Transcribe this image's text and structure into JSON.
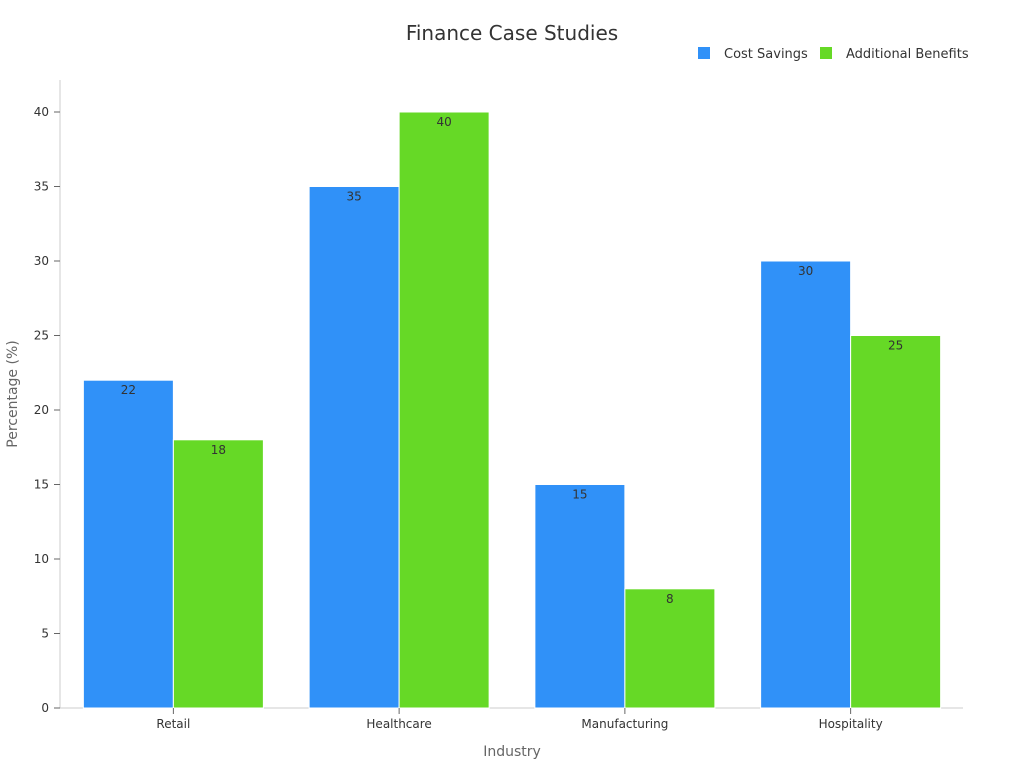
{
  "chart_data": {
    "type": "bar",
    "title": "Finance Case Studies",
    "xlabel": "Industry",
    "ylabel": "Percentage (%)",
    "categories": [
      "Retail",
      "Healthcare",
      "Manufacturing",
      "Hospitality"
    ],
    "series": [
      {
        "name": "Cost Savings",
        "color": "#3091f8",
        "values": [
          22,
          35,
          15,
          30
        ]
      },
      {
        "name": "Additional Benefits",
        "color": "#66d926",
        "values": [
          18,
          40,
          8,
          25
        ]
      }
    ],
    "ylim": [
      0,
      42
    ],
    "yticks": [
      0,
      5,
      10,
      15,
      20,
      25,
      30,
      35,
      40
    ],
    "ytick_labels": [
      "0",
      "5",
      "10",
      "15",
      "20",
      "25",
      "30",
      "35",
      "40"
    ],
    "legend_position": "top-right",
    "grid": false
  }
}
